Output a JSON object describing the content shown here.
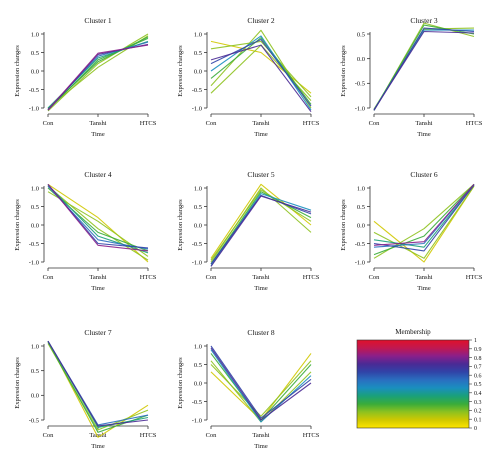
{
  "chart_data": {
    "type": "line",
    "xlabel": "Time",
    "ylabel": "Expression changes",
    "categories": [
      "Con",
      "Tanshi",
      "HTCS"
    ],
    "clusters": [
      {
        "title": "Cluster 1",
        "ylim": [
          -1.0,
          1.0
        ],
        "yticks": [
          -1.0,
          -0.5,
          0.0,
          0.5,
          1.0
        ],
        "yticklabels": [
          "-1.0",
          "-0.5",
          "0.0",
          "0.5",
          "1.0"
        ],
        "series": [
          {
            "values": [
              -1.08,
              0.2,
              1.0
            ],
            "m": 0.15
          },
          {
            "values": [
              -1.0,
              0.1,
              0.95
            ],
            "m": 0.2
          },
          {
            "values": [
              -1.02,
              0.25,
              0.92
            ],
            "m": 0.25
          },
          {
            "values": [
              -1.05,
              0.3,
              0.88
            ],
            "m": 0.3
          },
          {
            "values": [
              -1.0,
              0.35,
              0.8
            ],
            "m": 0.4
          },
          {
            "values": [
              -1.04,
              0.4,
              0.78
            ],
            "m": 0.55
          },
          {
            "values": [
              -1.06,
              0.45,
              0.72
            ],
            "m": 0.7
          },
          {
            "values": [
              -1.05,
              0.48,
              0.7
            ],
            "m": 0.8
          }
        ]
      },
      {
        "title": "Cluster 2",
        "ylim": [
          -1.0,
          1.0
        ],
        "yticks": [
          -1.0,
          -0.5,
          0.0,
          0.5,
          1.0
        ],
        "yticklabels": [
          "-1.0",
          "-0.5",
          "0.0",
          "0.5",
          "1.0"
        ],
        "series": [
          {
            "values": [
              0.8,
              0.5,
              -0.6
            ],
            "m": 0.12
          },
          {
            "values": [
              -0.6,
              0.7,
              -0.8
            ],
            "m": 0.15
          },
          {
            "values": [
              -0.4,
              1.1,
              -1.0
            ],
            "m": 0.2
          },
          {
            "values": [
              0.6,
              0.8,
              -0.7
            ],
            "m": 0.22
          },
          {
            "values": [
              -0.2,
              0.9,
              -0.9
            ],
            "m": 0.3
          },
          {
            "values": [
              0.0,
              0.95,
              -1.05
            ],
            "m": 0.45
          },
          {
            "values": [
              0.2,
              0.85,
              -0.95
            ],
            "m": 0.6
          },
          {
            "values": [
              0.3,
              0.7,
              -1.1
            ],
            "m": 0.75
          }
        ]
      },
      {
        "title": "Cluster 3",
        "ylim": [
          -1.0,
          0.5
        ],
        "yticks": [
          -1.0,
          -0.5,
          0.0,
          0.5
        ],
        "yticklabels": [
          "-1.0",
          "-0.5",
          "0.0",
          "0.5"
        ],
        "series": [
          {
            "values": [
              -1.05,
              0.72,
              0.45
            ],
            "m": 0.15
          },
          {
            "values": [
              -1.02,
              0.6,
              0.62
            ],
            "m": 0.2
          },
          {
            "values": [
              -1.04,
              0.68,
              0.5
            ],
            "m": 0.3
          },
          {
            "values": [
              -1.03,
              0.58,
              0.58
            ],
            "m": 0.45
          },
          {
            "values": [
              -1.05,
              0.62,
              0.55
            ],
            "m": 0.6
          },
          {
            "values": [
              -1.04,
              0.55,
              0.52
            ],
            "m": 0.75
          }
        ]
      },
      {
        "title": "Cluster 4",
        "ylim": [
          -1.0,
          1.0
        ],
        "yticks": [
          -1.0,
          -0.5,
          0.0,
          0.5,
          1.0
        ],
        "yticklabels": [
          "-1.0",
          "-0.5",
          "0.0",
          "0.5",
          "1.0"
        ],
        "series": [
          {
            "values": [
              1.1,
              0.2,
              -1.0
            ],
            "m": 0.12
          },
          {
            "values": [
              0.9,
              0.1,
              -0.85
            ],
            "m": 0.15
          },
          {
            "values": [
              1.05,
              -0.1,
              -0.95
            ],
            "m": 0.2
          },
          {
            "values": [
              1.0,
              -0.2,
              -0.7
            ],
            "m": 0.25
          },
          {
            "values": [
              1.08,
              -0.3,
              -0.75
            ],
            "m": 0.35
          },
          {
            "values": [
              1.05,
              -0.4,
              -0.65
            ],
            "m": 0.5
          },
          {
            "values": [
              1.1,
              -0.5,
              -0.62
            ],
            "m": 0.65
          },
          {
            "values": [
              1.1,
              -0.55,
              -0.7
            ],
            "m": 0.8
          }
        ]
      },
      {
        "title": "Cluster 5",
        "ylim": [
          -1.0,
          1.0
        ],
        "yticks": [
          -1.0,
          -0.5,
          0.0,
          0.5,
          1.0
        ],
        "yticklabels": [
          "-1.0",
          "-0.5",
          "0.0",
          "0.5",
          "1.0"
        ],
        "series": [
          {
            "values": [
              -0.9,
              1.1,
              0.0
            ],
            "m": 0.12
          },
          {
            "values": [
              -1.0,
              1.0,
              -0.2
            ],
            "m": 0.15
          },
          {
            "values": [
              -0.95,
              0.95,
              0.1
            ],
            "m": 0.2
          },
          {
            "values": [
              -1.05,
              0.9,
              0.2
            ],
            "m": 0.3
          },
          {
            "values": [
              -1.1,
              0.85,
              0.4
            ],
            "m": 0.45
          },
          {
            "values": [
              -1.05,
              0.8,
              0.3
            ],
            "m": 0.6
          },
          {
            "values": [
              -1.12,
              0.78,
              0.35
            ],
            "m": 0.75
          }
        ]
      },
      {
        "title": "Cluster 6",
        "ylim": [
          -1.0,
          1.0
        ],
        "yticks": [
          -1.0,
          -0.5,
          0.0,
          0.5,
          1.0
        ],
        "yticklabels": [
          "-1.0",
          "-0.5",
          "0.0",
          "0.5",
          "1.0"
        ],
        "series": [
          {
            "values": [
              0.1,
              -1.0,
              1.05
            ],
            "m": 0.12
          },
          {
            "values": [
              -0.9,
              -0.1,
              1.1
            ],
            "m": 0.15
          },
          {
            "values": [
              -0.2,
              -0.9,
              1.05
            ],
            "m": 0.2
          },
          {
            "values": [
              -0.8,
              -0.3,
              1.1
            ],
            "m": 0.25
          },
          {
            "values": [
              -0.4,
              -0.6,
              1.08
            ],
            "m": 0.35
          },
          {
            "values": [
              -0.6,
              -0.5,
              1.1
            ],
            "m": 0.5
          },
          {
            "values": [
              -0.5,
              -0.7,
              1.08
            ],
            "m": 0.65
          },
          {
            "values": [
              -0.55,
              -0.45,
              1.1
            ],
            "m": 0.8
          }
        ]
      },
      {
        "title": "Cluster 7",
        "ylim": [
          -0.5,
          1.0
        ],
        "yticks": [
          -0.5,
          0.0,
          0.5,
          1.0
        ],
        "yticklabels": [
          "-0.5",
          "0.0",
          "0.5",
          "1.0"
        ],
        "series": [
          {
            "values": [
              1.1,
              -0.85,
              -0.2
            ],
            "m": 0.12
          },
          {
            "values": [
              1.05,
              -0.7,
              -0.3
            ],
            "m": 0.18
          },
          {
            "values": [
              1.08,
              -0.75,
              -0.4
            ],
            "m": 0.25
          },
          {
            "values": [
              1.1,
              -0.65,
              -0.45
            ],
            "m": 0.4
          },
          {
            "values": [
              1.1,
              -0.6,
              -0.4
            ],
            "m": 0.55
          },
          {
            "values": [
              1.1,
              -0.62,
              -0.5
            ],
            "m": 0.75
          }
        ]
      },
      {
        "title": "Cluster 8",
        "ylim": [
          -1.0,
          1.0
        ],
        "yticks": [
          -1.0,
          -0.5,
          0.0,
          0.5,
          1.0
        ],
        "yticklabels": [
          "-1.0",
          "-0.5",
          "0.0",
          "0.5",
          "1.0"
        ],
        "series": [
          {
            "values": [
              0.3,
              -1.0,
              0.8
            ],
            "m": 0.12
          },
          {
            "values": [
              0.5,
              -0.9,
              0.6
            ],
            "m": 0.15
          },
          {
            "values": [
              0.6,
              -1.05,
              0.3
            ],
            "m": 0.2
          },
          {
            "values": [
              0.8,
              -1.0,
              0.5
            ],
            "m": 0.3
          },
          {
            "values": [
              0.9,
              -1.05,
              0.2
            ],
            "m": 0.45
          },
          {
            "values": [
              1.0,
              -0.95,
              0.1
            ],
            "m": 0.6
          },
          {
            "values": [
              0.95,
              -1.0,
              0.0
            ],
            "m": 0.75
          }
        ]
      }
    ],
    "legend": {
      "title": "Membership",
      "ticks": [
        "1",
        "0.9",
        "0.8",
        "0.7",
        "0.6",
        "0.5",
        "0.4",
        "0.3",
        "0.2",
        "0.1",
        "0"
      ],
      "colors": [
        "#ffe600",
        "#d0c800",
        "#8ec21f",
        "#3aac3a",
        "#1aa07a",
        "#1a8fbf",
        "#2a6fc0",
        "#3044a8",
        "#4a2a95",
        "#8a1f8a",
        "#c01850",
        "#e0102a"
      ]
    }
  }
}
